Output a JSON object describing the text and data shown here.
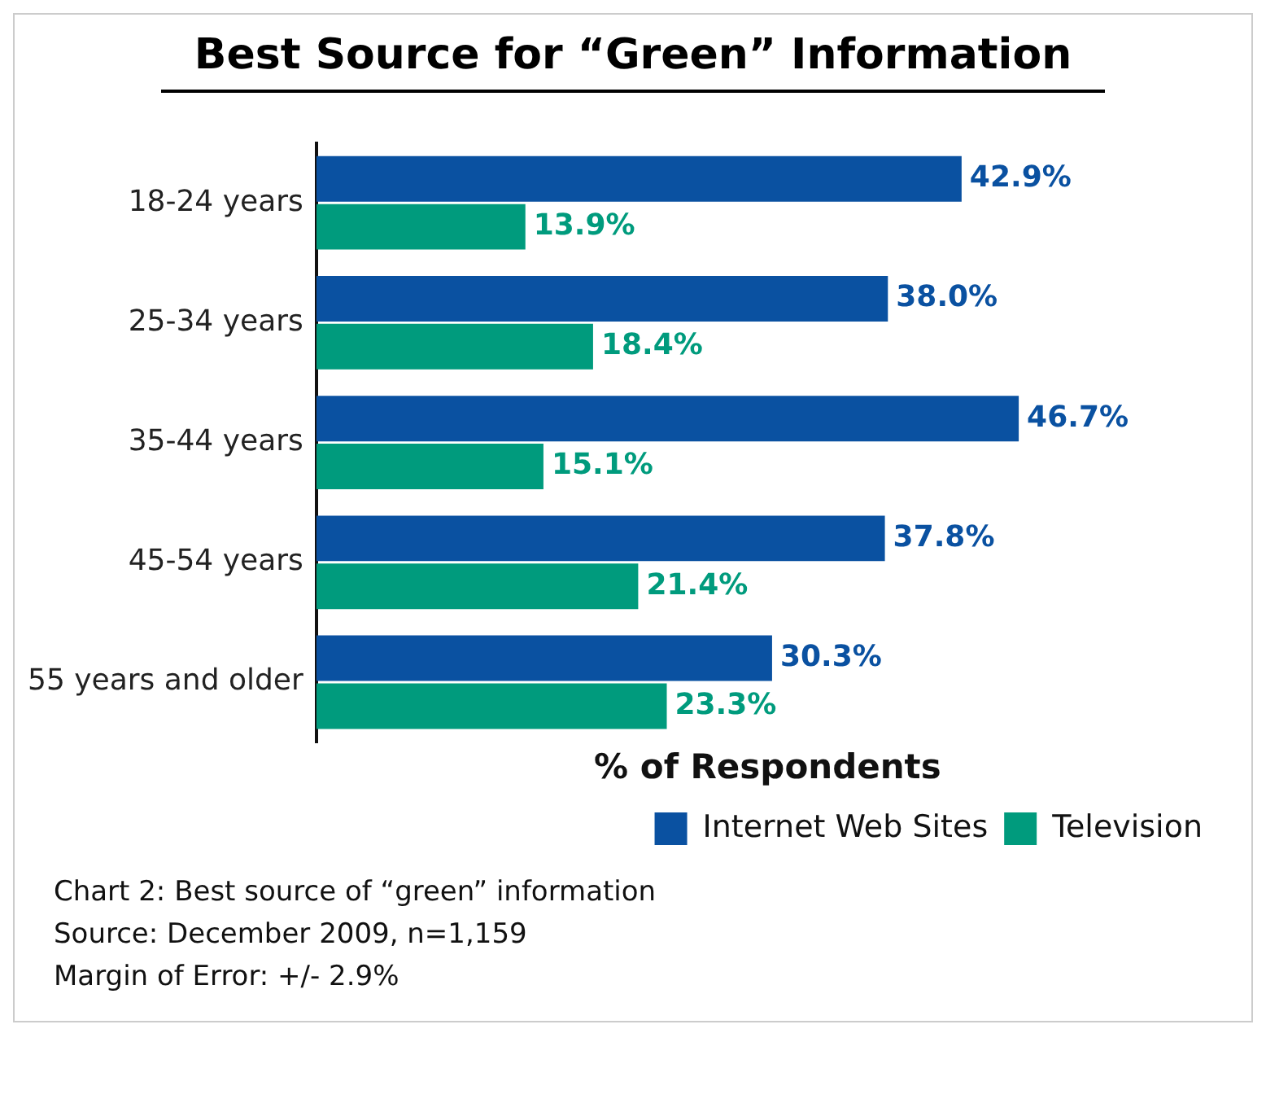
{
  "chart_data": {
    "type": "bar",
    "orientation": "horizontal",
    "title": "Best Source for “Green” Information",
    "xlabel": "% of Respondents",
    "categories": [
      "18-24 years",
      "25-34 years",
      "35-44 years",
      "45-54 years",
      "55 years and older"
    ],
    "series": [
      {
        "name": "Internet Web Sites",
        "color": "#0a51a1",
        "values": [
          42.9,
          38.0,
          46.7,
          37.8,
          30.3
        ],
        "value_labels": [
          "42.9%",
          "38.0%",
          "46.7%",
          "37.8%",
          "30.3%"
        ]
      },
      {
        "name": "Television",
        "color": "#009b7d",
        "values": [
          13.9,
          18.4,
          15.1,
          21.4,
          23.3
        ],
        "value_labels": [
          "13.9%",
          "18.4%",
          "15.1%",
          "21.4%",
          "23.3%"
        ]
      }
    ],
    "legend": "bottom right",
    "grid": false,
    "annotations": [
      "Chart 2: Best source of “green” information",
      "Source: December 2009, n=1,159",
      "Margin of Error: +/- 2.9%"
    ]
  }
}
